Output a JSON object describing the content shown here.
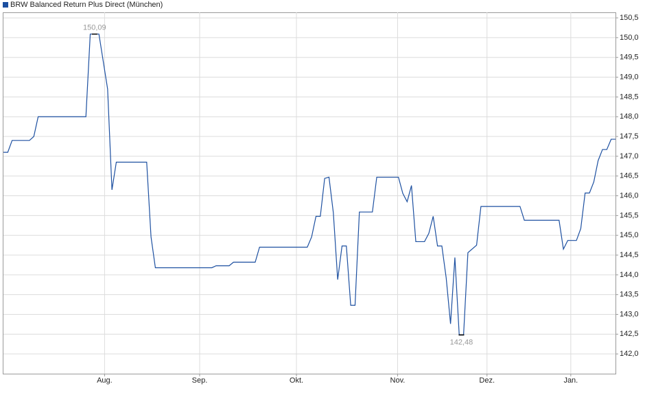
{
  "chart_data": {
    "type": "line",
    "series": [
      {
        "name": "BRW Balanced Return Plus Direct (München)",
        "color": "#1c4fa0",
        "x": [
          0,
          1,
          2,
          6,
          7,
          8,
          19,
          20,
          22,
          24,
          25,
          26,
          33,
          34,
          35,
          48,
          49,
          52,
          53,
          58,
          59,
          70,
          71,
          72,
          73,
          74,
          75,
          76,
          77,
          78,
          79,
          80,
          81,
          82,
          85,
          86,
          91,
          92,
          93,
          94,
          95,
          97,
          98,
          99,
          100,
          101,
          102,
          103,
          104,
          105,
          106,
          107,
          109,
          110,
          119,
          120,
          128,
          129,
          130,
          132,
          133,
          134,
          135,
          136,
          137,
          138,
          139,
          140,
          141
        ],
        "values": [
          147.1,
          147.1,
          147.4,
          147.4,
          147.5,
          148.0,
          148.0,
          150.09,
          150.09,
          148.7,
          146.15,
          146.85,
          146.85,
          144.96,
          144.18,
          144.18,
          144.23,
          144.23,
          144.32,
          144.32,
          144.7,
          144.7,
          144.96,
          145.48,
          145.48,
          146.44,
          146.47,
          145.57,
          143.88,
          144.73,
          144.73,
          143.23,
          143.23,
          145.59,
          145.59,
          146.47,
          146.47,
          146.06,
          145.85,
          146.26,
          144.84,
          144.84,
          145.05,
          145.48,
          144.73,
          144.73,
          143.92,
          142.76,
          144.44,
          142.48,
          142.48,
          144.56,
          144.75,
          145.73,
          145.73,
          145.38,
          145.38,
          144.65,
          144.87,
          144.87,
          145.17,
          146.07,
          146.07,
          146.35,
          146.89,
          147.17,
          147.17,
          147.43,
          147.43
        ]
      }
    ],
    "annotations": [
      {
        "x": 21,
        "value": 150.09,
        "label": "150,09"
      },
      {
        "x": 105.5,
        "value": 142.48,
        "label": "142,48"
      }
    ],
    "xlim": [
      0,
      141
    ],
    "xticks": [
      {
        "value": 23.3,
        "label": "Aug."
      },
      {
        "value": 45.2,
        "label": "Sep."
      },
      {
        "value": 67.5,
        "label": "Okt."
      },
      {
        "value": 90.8,
        "label": "Nov."
      },
      {
        "value": 111.4,
        "label": "Dez."
      },
      {
        "value": 130.7,
        "label": "Jan."
      }
    ],
    "ylim": [
      141.5,
      150.64
    ],
    "yticks": [
      {
        "value": 142,
        "label": "142,0"
      },
      {
        "value": 142.5,
        "label": "142,5"
      },
      {
        "value": 143,
        "label": "143,0"
      },
      {
        "value": 143.5,
        "label": "143,5"
      },
      {
        "value": 144,
        "label": "144,0"
      },
      {
        "value": 144.5,
        "label": "144,5"
      },
      {
        "value": 145,
        "label": "145,0"
      },
      {
        "value": 145.5,
        "label": "145,5"
      },
      {
        "value": 146,
        "label": "146,0"
      },
      {
        "value": 146.5,
        "label": "146,5"
      },
      {
        "value": 147,
        "label": "147,0"
      },
      {
        "value": 147.5,
        "label": "147,5"
      },
      {
        "value": 148,
        "label": "148,0"
      },
      {
        "value": 148.5,
        "label": "148,5"
      },
      {
        "value": 149,
        "label": "149,0"
      },
      {
        "value": 149.5,
        "label": "149,5"
      },
      {
        "value": 150,
        "label": "150,0"
      },
      {
        "value": 150.5,
        "label": "150,5"
      }
    ],
    "grid": true
  }
}
